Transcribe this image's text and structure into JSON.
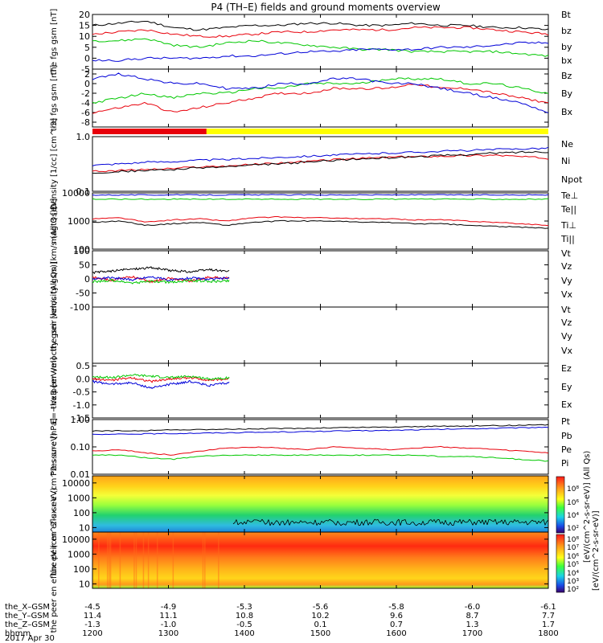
{
  "title": "P4 (TH–E) fields and ground moments overview",
  "date_label": "2017 Apr 30",
  "colors": {
    "black": "#000000",
    "red": "#e8000b",
    "green": "#00c800",
    "blue": "#0000d8",
    "yellow": "#ffff00"
  },
  "footer": {
    "rows": [
      {
        "label": "the_X–GSM",
        "values": [
          "-4.5",
          "-4.9",
          "-5.3",
          "-5.6",
          "-5.8",
          "-6.0",
          "-6.1"
        ]
      },
      {
        "label": "the_Y–GSM",
        "values": [
          "11.4",
          "11.1",
          "10.8",
          "10.2",
          "9.6",
          "8.7",
          "7.7"
        ]
      },
      {
        "label": "the_Z–GSM",
        "values": [
          "-1.3",
          "-1.0",
          "-0.5",
          "0.1",
          "0.7",
          "1.3",
          "1.7"
        ]
      },
      {
        "label": "hhmm",
        "values": [
          "1200",
          "1300",
          "1400",
          "1500",
          "1600",
          "1700",
          "1800"
        ]
      }
    ]
  },
  "mode_bar": {
    "red_fraction": 0.25,
    "colors": [
      "red",
      "yellow"
    ]
  },
  "colorbar": {
    "label": "[eV/(cm^2-s-sr-eV)]",
    "overlay_label": "[eV/(cm^2-s-sr-eV)] (All Qs)",
    "top_ticks": [
      "10^8",
      "10^6",
      "10^4",
      "10^2"
    ],
    "bottom_ticks": [
      "10^8",
      "10^7",
      "10^6",
      "10^5",
      "10^4",
      "10^3",
      "10^2"
    ],
    "labels": {
      "ticks_top": [
        "10⁸",
        "10⁶",
        "10⁴",
        "10²"
      ],
      "ticks_bottom": [
        "10⁸",
        "10⁷",
        "10⁶",
        "10⁵",
        "10⁴",
        "10³",
        "10²"
      ]
    }
  },
  "chart_data": [
    {
      "type": "line",
      "ylabel": "the fgs gsm [nT]",
      "ylim": [
        -5,
        20
      ],
      "yticks": [
        "20",
        "15",
        "10",
        "5",
        "0",
        "-5"
      ],
      "x_range": [
        1200,
        1800
      ],
      "series": [
        {
          "name": "Bt",
          "color": "black",
          "y": [
            15,
            16,
            17,
            14,
            13,
            14,
            15,
            15,
            16,
            16,
            15,
            15,
            16,
            15,
            15,
            14,
            14,
            13
          ]
        },
        {
          "name": "bz",
          "color": "red",
          "y": [
            11,
            12,
            13,
            11,
            10,
            10,
            11,
            12,
            12,
            13,
            13,
            13,
            14,
            14,
            14,
            13,
            12,
            11
          ]
        },
        {
          "name": "by",
          "color": "green",
          "y": [
            8,
            8,
            9,
            6,
            5,
            7,
            8,
            7,
            6,
            5,
            4,
            4,
            3,
            3,
            3,
            3,
            2,
            1
          ]
        },
        {
          "name": "bx",
          "color": "blue",
          "y": [
            -1,
            -1,
            0,
            0,
            0,
            1,
            1,
            2,
            3,
            3,
            4,
            4,
            4,
            5,
            5,
            6,
            7,
            7
          ]
        }
      ]
    },
    {
      "type": "line",
      "ylabel": "the fgs gsm [nT]",
      "ylim": [
        -9,
        3
      ],
      "yticks": [
        "2",
        "0",
        "-2",
        "-4",
        "-6",
        "-8"
      ],
      "x_range": [
        1200,
        1800
      ],
      "series": [
        {
          "name": "Bz",
          "color": "red",
          "y": [
            -6,
            -5,
            -4,
            -6,
            -5,
            -4,
            -3,
            -2,
            -2,
            -1,
            -1,
            -1,
            0,
            -1,
            -1,
            -2,
            -3,
            -4
          ]
        },
        {
          "name": "By",
          "color": "green",
          "y": [
            -4,
            -3,
            -2,
            -3,
            -2,
            -2,
            -1,
            -1,
            0,
            0,
            0,
            1,
            1,
            1,
            0,
            0,
            -1,
            -2
          ]
        },
        {
          "name": "Bx",
          "color": "blue",
          "y": [
            1,
            2,
            1,
            0,
            0,
            -1,
            -1,
            0,
            0,
            1,
            1,
            0,
            0,
            -1,
            -2,
            -3,
            -4,
            -6
          ]
        }
      ]
    },
    {
      "type": "line",
      "ylabel": "Density [1/cc] [cm^-3]",
      "y_scale": "log",
      "ylim": [
        0.1,
        1.0
      ],
      "yticks": [
        "1.0",
        "0.1"
      ],
      "x_range": [
        1200,
        1800
      ],
      "series": [
        {
          "name": "Ne",
          "color": "red",
          "y": [
            0.23,
            0.24,
            0.25,
            0.26,
            0.28,
            0.29,
            0.31,
            0.33,
            0.35,
            0.38,
            0.4,
            0.42,
            0.43,
            0.44,
            0.45,
            0.46,
            0.43,
            0.4
          ]
        },
        {
          "name": "Ni",
          "color": "black",
          "y": [
            0.22,
            0.23,
            0.24,
            0.25,
            0.27,
            0.28,
            0.3,
            0.32,
            0.34,
            0.37,
            0.39,
            0.41,
            0.43,
            0.45,
            0.47,
            0.5,
            0.52,
            0.53
          ]
        },
        {
          "name": "Npot",
          "color": "blue",
          "y": [
            0.3,
            0.32,
            0.34,
            0.35,
            0.37,
            0.38,
            0.4,
            0.42,
            0.44,
            0.46,
            0.48,
            0.5,
            0.52,
            0.54,
            0.56,
            0.58,
            0.6,
            0.62
          ]
        }
      ]
    },
    {
      "type": "line",
      "ylabel": "magt3 [eV]",
      "y_scale": "log",
      "ylim": [
        100,
        10000
      ],
      "yticks": [
        "10000",
        "1000",
        "100"
      ],
      "x_range": [
        1200,
        1800
      ],
      "series": [
        {
          "name": "Te⊥",
          "color": "red",
          "y": [
            1200,
            1300,
            900,
            1100,
            1200,
            1000,
            1300,
            1400,
            1300,
            1300,
            1200,
            1200,
            1100,
            1100,
            1000,
            900,
            800,
            700
          ]
        },
        {
          "name": "Te||",
          "color": "black",
          "y": [
            900,
            1000,
            700,
            800,
            900,
            700,
            900,
            1000,
            1000,
            1000,
            900,
            900,
            800,
            800,
            700,
            650,
            600,
            550
          ]
        },
        {
          "name": "Ti⊥",
          "color": "blue",
          "y": [
            8500,
            8500,
            8500,
            8500,
            8500,
            8500,
            8500,
            8500,
            8500,
            8500,
            8500,
            8500,
            8500,
            8500,
            8500,
            8500,
            8500,
            8500
          ]
        },
        {
          "name": "Ti||",
          "color": "green",
          "y": [
            6000,
            6000,
            6000,
            6000,
            6000,
            6000,
            6000,
            6000,
            6000,
            6000,
            6000,
            6000,
            6000,
            6000,
            6000,
            6000,
            6000,
            6000
          ]
        }
      ]
    },
    {
      "type": "line",
      "ylabel": "the peir velocity gsm [km/s (All Qs)]",
      "ylim": [
        -100,
        100
      ],
      "yticks": [
        "100",
        "50",
        "0",
        "-50",
        "-100"
      ],
      "x_range": [
        1200,
        1800
      ],
      "data_end": 1380,
      "series": [
        {
          "name": "Vt",
          "color": "black",
          "y": [
            22,
            28,
            35,
            40,
            30,
            25,
            33,
            26
          ]
        },
        {
          "name": "Vz",
          "color": "red",
          "y": [
            5,
            -5,
            8,
            -10,
            3,
            -8,
            6,
            2
          ]
        },
        {
          "name": "Vy",
          "color": "green",
          "y": [
            -10,
            -5,
            -15,
            -8,
            -12,
            -6,
            -9,
            -7
          ]
        },
        {
          "name": "Vx",
          "color": "blue",
          "y": [
            0,
            5,
            -3,
            8,
            -5,
            4,
            -2,
            3
          ]
        }
      ]
    },
    {
      "type": "line",
      "ylabel": "the peer velocity gsm [km/s (All Qs)]",
      "ylim": [
        -100,
        100
      ],
      "yticks": [],
      "x_range": [
        1200,
        1800
      ],
      "series": [
        {
          "name": "Vt",
          "color": "black",
          "y": []
        },
        {
          "name": "Vz",
          "color": "red",
          "y": []
        },
        {
          "name": "Vy",
          "color": "green",
          "y": []
        },
        {
          "name": "Vx",
          "color": "blue",
          "y": []
        }
      ]
    },
    {
      "type": "line",
      "ylabel": "E=−VxB [mV/m]",
      "ylim": [
        -1.5,
        0.6
      ],
      "yticks": [
        "0.5",
        "0.0",
        "-0.5",
        "-1.0",
        "-1.5"
      ],
      "x_range": [
        1200,
        1800
      ],
      "data_end": 1380,
      "series": [
        {
          "name": "Ez",
          "color": "red",
          "y": [
            0.0,
            -0.05,
            0.05,
            -0.1,
            0.0,
            0.05,
            -0.05,
            0.0
          ]
        },
        {
          "name": "Ey",
          "color": "green",
          "y": [
            0.1,
            0.05,
            0.15,
            0.1,
            0.05,
            0.1,
            0.0,
            0.05
          ]
        },
        {
          "name": "Ex",
          "color": "blue",
          "y": [
            -0.1,
            -0.2,
            -0.15,
            -0.35,
            -0.2,
            -0.1,
            -0.25,
            -0.15
          ]
        }
      ]
    },
    {
      "type": "line",
      "ylabel": "Pressure [nPa]",
      "y_scale": "log",
      "ylim": [
        0.01,
        1.0
      ],
      "yticks": [
        "1.00",
        "0.10",
        "0.01"
      ],
      "x_range": [
        1200,
        1800
      ],
      "series": [
        {
          "name": "Pt",
          "color": "black",
          "y": [
            0.38,
            0.39,
            0.4,
            0.42,
            0.43,
            0.44,
            0.45,
            0.47,
            0.48,
            0.5,
            0.52,
            0.53,
            0.55,
            0.57,
            0.58,
            0.6,
            0.62,
            0.64
          ]
        },
        {
          "name": "Pb",
          "color": "red",
          "y": [
            0.07,
            0.08,
            0.06,
            0.05,
            0.07,
            0.09,
            0.1,
            0.09,
            0.08,
            0.1,
            0.09,
            0.08,
            0.09,
            0.1,
            0.09,
            0.08,
            0.07,
            0.06
          ]
        },
        {
          "name": "Pe",
          "color": "green",
          "y": [
            0.05,
            0.05,
            0.04,
            0.035,
            0.045,
            0.05,
            0.05,
            0.05,
            0.05,
            0.05,
            0.05,
            0.05,
            0.05,
            0.045,
            0.045,
            0.04,
            0.035,
            0.03
          ]
        },
        {
          "name": "Pi",
          "color": "blue",
          "y": [
            0.28,
            0.29,
            0.3,
            0.31,
            0.32,
            0.33,
            0.34,
            0.35,
            0.36,
            0.38,
            0.39,
            0.4,
            0.42,
            0.44,
            0.46,
            0.48,
            0.5,
            0.53
          ]
        }
      ]
    },
    {
      "type": "heatmap",
      "ylabel": "the peir en eflux eV (cm^2-s-sr-eV)",
      "y_scale": "log",
      "ylim": [
        5,
        30000
      ],
      "yticks": [
        "10000",
        "1000",
        "100",
        "10"
      ],
      "x_range": [
        1200,
        1800
      ]
    },
    {
      "type": "heatmap",
      "ylabel": "the peer en eflux eV (cm^2-s-sr-eV)",
      "y_scale": "log",
      "ylim": [
        5,
        30000
      ],
      "yticks": [
        "10000",
        "1000",
        "100",
        "10"
      ],
      "x_range": [
        1200,
        1800
      ]
    }
  ]
}
